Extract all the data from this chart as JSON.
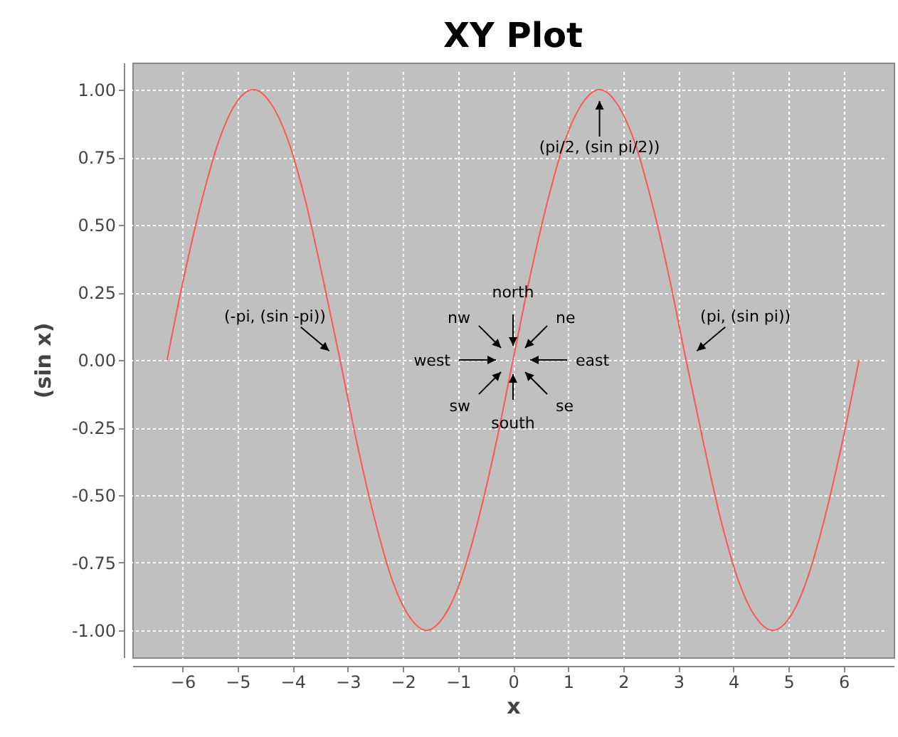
{
  "chart_data": {
    "type": "line",
    "title": "XY Plot",
    "xlabel": "x",
    "ylabel": "(sin x)",
    "x": [
      -6.28,
      -5.97,
      -5.65,
      -5.34,
      -5.03,
      -4.71,
      -4.4,
      -4.08,
      -3.77,
      -3.46,
      -3.14,
      -2.83,
      -2.51,
      -2.2,
      -1.88,
      -1.57,
      -1.26,
      -0.94,
      -0.63,
      -0.31,
      0,
      0.31,
      0.63,
      0.94,
      1.26,
      1.57,
      1.88,
      2.2,
      2.51,
      2.83,
      3.14,
      3.46,
      3.77,
      4.08,
      4.4,
      4.71,
      5.03,
      5.34,
      5.65,
      5.97,
      6.28
    ],
    "series": [
      {
        "color": "#ff5555",
        "values": [
          0,
          0.31,
          0.59,
          0.81,
          0.95,
          1,
          0.95,
          0.81,
          0.59,
          0.31,
          0,
          -0.31,
          -0.59,
          -0.81,
          -0.95,
          -1,
          -0.95,
          -0.81,
          -0.59,
          -0.31,
          0,
          0.31,
          0.59,
          0.81,
          0.95,
          1,
          0.95,
          0.81,
          0.59,
          0.31,
          0,
          -0.31,
          -0.59,
          -0.81,
          -0.95,
          -1,
          -0.95,
          -0.81,
          -0.59,
          -0.31,
          0
        ]
      }
    ],
    "xlim": [
      -6.91,
      6.91
    ],
    "xticks": [
      -6,
      -5,
      -4,
      -3,
      -2,
      -1,
      0,
      1,
      2,
      3,
      4,
      5,
      6
    ],
    "ylim": [
      -1.1,
      1.1
    ],
    "yticks": [
      {
        "value": -1,
        "label": "-1.00"
      },
      {
        "value": -0.75,
        "label": "-0.75"
      },
      {
        "value": -0.5,
        "label": "-0.50"
      },
      {
        "value": -0.25,
        "label": "-0.25"
      },
      {
        "value": 0,
        "label": "0.00"
      },
      {
        "value": 0.25,
        "label": "0.25"
      },
      {
        "value": 0.5,
        "label": "0.50"
      },
      {
        "value": 0.75,
        "label": "0.75"
      },
      {
        "value": 1,
        "label": "1.00"
      }
    ],
    "grid": true,
    "annotations": [
      {
        "text": "(pi/2, (sin pi/2))",
        "x": 1.57,
        "y": 1
      },
      {
        "text": "(-pi, (sin -pi))",
        "x": -3.14,
        "y": 0
      },
      {
        "text": "(pi, (sin pi))",
        "x": 3.14,
        "y": 0
      },
      "north",
      "south",
      "east",
      "west",
      "ne",
      "nw",
      "se",
      "sw"
    ]
  }
}
